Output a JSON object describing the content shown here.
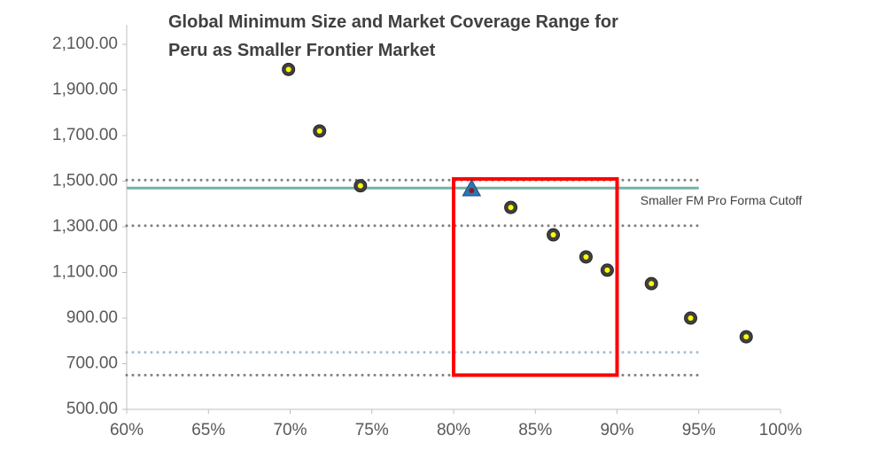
{
  "chart_data": {
    "type": "scatter",
    "title": [
      "Global Minimum Size and Market Coverage Range for",
      "Peru as Smaller Frontier Market"
    ],
    "x": [
      69.9,
      71.8,
      74.3,
      83.5,
      86.1,
      88.1,
      89.4,
      92.1,
      94.5,
      97.9
    ],
    "values": [
      1990,
      1720,
      1480,
      1385,
      1265,
      1168,
      1110,
      1051,
      900,
      818
    ],
    "color": "#ffff00",
    "highlight": {
      "x": 81.1,
      "y": 1463,
      "color": "#2e75b6"
    },
    "hlines": [
      {
        "value": 1505,
        "color": "#7f7f7f",
        "style": "dotted",
        "xrange": [
          60,
          95
        ]
      },
      {
        "value": 1470,
        "color": "#76b0a4",
        "style": "solid",
        "xrange": [
          60,
          95
        ],
        "label": "Smaller FM Pro Forma Cutoff"
      },
      {
        "value": 1305,
        "color": "#7f7f7f",
        "style": "dotted",
        "xrange": [
          60,
          95
        ]
      },
      {
        "value": 750,
        "color": "#a6bccd",
        "style": "dotted",
        "xrange": [
          60,
          95
        ]
      },
      {
        "value": 650,
        "color": "#7f7f7f",
        "style": "dotted",
        "xrange": [
          60,
          95
        ]
      }
    ],
    "box": {
      "xlim": [
        80,
        90
      ],
      "ylim": [
        650,
        1510
      ],
      "color": "#ff0000"
    },
    "xlim": [
      60,
      100
    ],
    "xticks": [
      {
        "value": 60,
        "label": "60%"
      },
      {
        "value": 65,
        "label": "65%"
      },
      {
        "value": 70,
        "label": "70%"
      },
      {
        "value": 75,
        "label": "75%"
      },
      {
        "value": 80,
        "label": "80%"
      },
      {
        "value": 85,
        "label": "85%"
      },
      {
        "value": 90,
        "label": "90%"
      },
      {
        "value": 95,
        "label": "95%"
      },
      {
        "value": 100,
        "label": "100%"
      }
    ],
    "ylim": [
      500,
      2100
    ],
    "yticks": [
      {
        "value": 500,
        "label": "500.00"
      },
      {
        "value": 700,
        "label": "700.00"
      },
      {
        "value": 900,
        "label": "900.00"
      },
      {
        "value": 1100,
        "label": "1,100.00"
      },
      {
        "value": 1300,
        "label": "1,300.00"
      },
      {
        "value": 1500,
        "label": "1,500.00"
      },
      {
        "value": 1700,
        "label": "1,700.00"
      },
      {
        "value": 1900,
        "label": "1,900.00"
      },
      {
        "value": 2100,
        "label": "2,100.00"
      }
    ]
  }
}
